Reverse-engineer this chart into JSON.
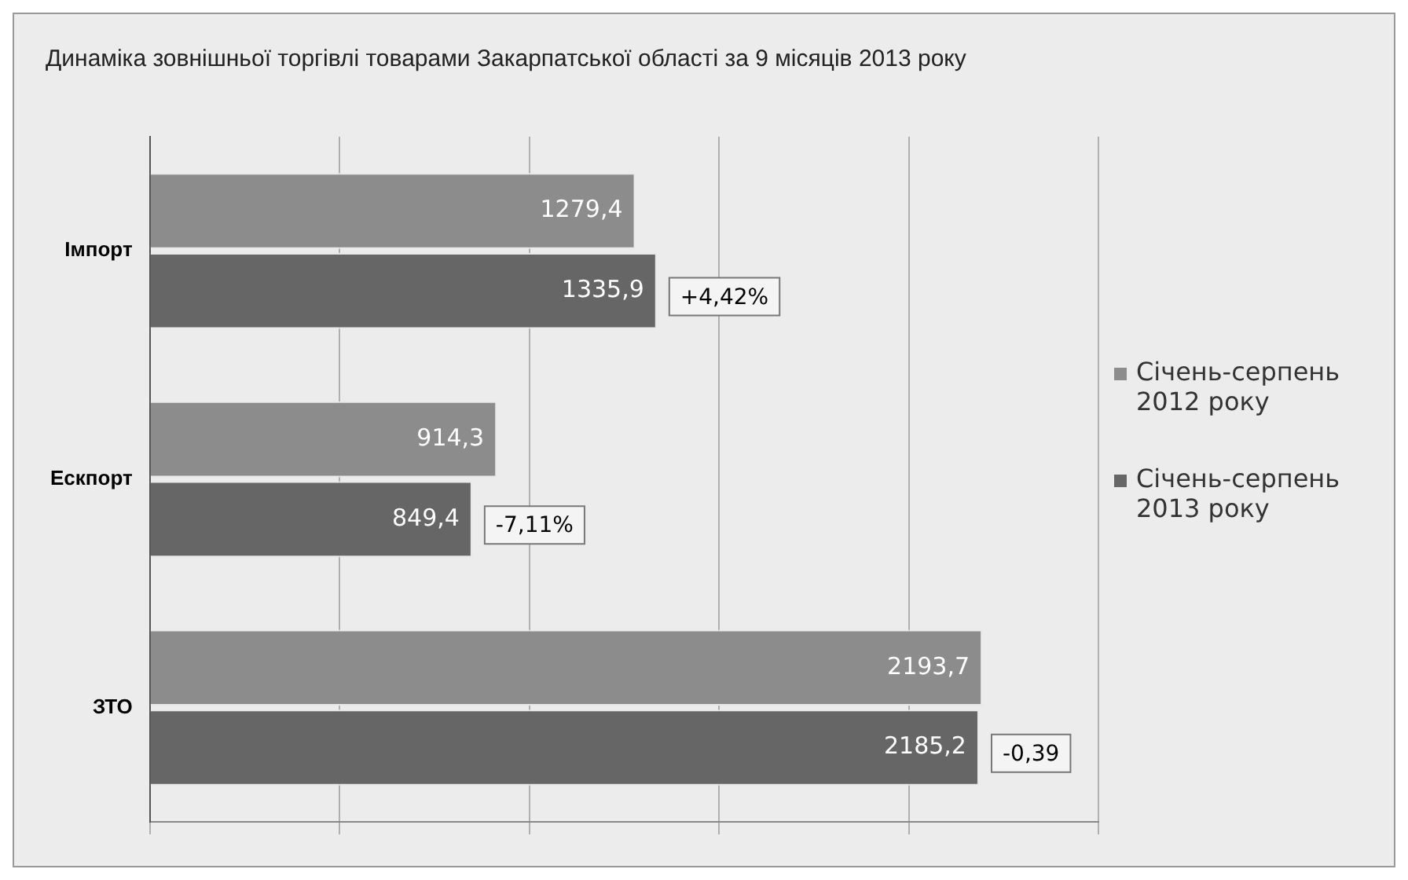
{
  "chart_data": {
    "type": "bar",
    "orientation": "horizontal",
    "title": "Динаміка зовнішньої торгівлі товарами Закарпатської області за 9 місяців 2013 року",
    "categories": [
      "Імпорт",
      "Ескпорт",
      "ЗТО"
    ],
    "series": [
      {
        "name": "Січень-серпень 2012 року",
        "color": "#8c8c8c",
        "values": [
          1279.4,
          914.3,
          2193.7
        ],
        "value_labels": [
          "1279,4",
          "914,3",
          "2193,7"
        ]
      },
      {
        "name": "Січень-серпень 2013 року",
        "color": "#666666",
        "values": [
          1335.9,
          849.4,
          2185.2
        ],
        "value_labels": [
          "1335,9",
          "849,4",
          "2185,2"
        ]
      }
    ],
    "xlim": [
      0,
      2500
    ],
    "xticks": [
      {
        "value": 0,
        "label": null
      },
      {
        "value": 500,
        "label": null
      },
      {
        "value": 1000,
        "label": null
      },
      {
        "value": 1500,
        "label": null
      },
      {
        "value": 2000,
        "label": null
      },
      {
        "value": 2500,
        "label": null
      }
    ],
    "tick_labels": "y",
    "grid": "x",
    "legend": "right",
    "annotations": [
      {
        "text": "+4,42%",
        "x": 1335.9,
        "y": "Імпорт"
      },
      {
        "text": "-7,11%",
        "x": 849.4,
        "y": "Ескпорт"
      },
      {
        "text": "-0,39",
        "x": 2185.2,
        "y": "ЗТО"
      }
    ]
  }
}
